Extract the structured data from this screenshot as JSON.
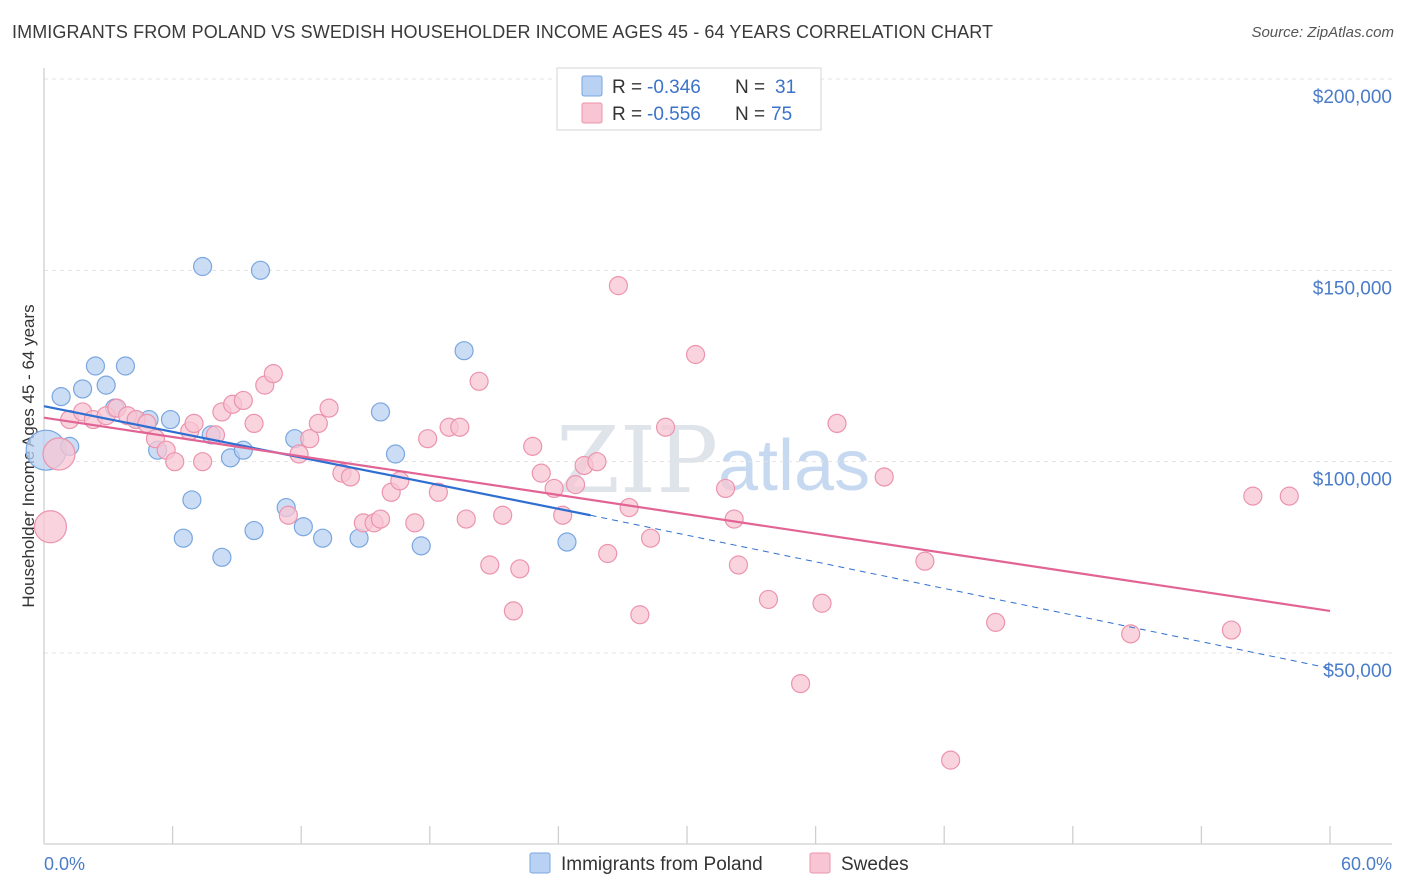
{
  "title": "IMMIGRANTS FROM POLAND VS SWEDISH HOUSEHOLDER INCOME AGES 45 - 64 YEARS CORRELATION CHART",
  "source": "Source: ZipAtlas.com",
  "watermark": {
    "zip": "ZIP",
    "atlas": "atlas"
  },
  "colors": {
    "blue_fill": "#b9d1f2",
    "blue_stroke": "#7aa6e0",
    "blue_line": "#2f6fd1",
    "pink_fill": "#f7c5d3",
    "pink_stroke": "#ec93ad",
    "pink_line": "#e26494",
    "tick_text": "#4a7cc9"
  },
  "legend": {
    "rows": [
      {
        "r_label": "R = ",
        "r_value": "-0.346",
        "n_label": "N = ",
        "n_value": "31"
      },
      {
        "r_label": "R = ",
        "r_value": "-0.556",
        "n_label": "N = ",
        "n_value": "75"
      }
    ]
  },
  "chart_data": {
    "type": "scatter",
    "title": "IMMIGRANTS FROM POLAND VS SWEDISH HOUSEHOLDER INCOME AGES 45 - 64 YEARS CORRELATION CHART",
    "xlabel": "",
    "ylabel": "Householder Income Ages 45 - 64 years",
    "xlim": [
      0,
      60
    ],
    "ylim": [
      5000,
      210000
    ],
    "x_tick_labels": {
      "left": "0.0%",
      "right": "60.0%"
    },
    "y_ticks": [
      {
        "value": 50000,
        "label": "$50,000"
      },
      {
        "value": 100000,
        "label": "$100,000"
      },
      {
        "value": 150000,
        "label": "$150,000"
      },
      {
        "value": 200000,
        "label": "$200,000"
      }
    ],
    "grid": true,
    "series": [
      {
        "name": "Immigrants from Poland",
        "color": "blue",
        "R": -0.346,
        "N": 31,
        "trend": {
          "x0": 0,
          "y0": 114500,
          "x1": 25.5,
          "y1": 86000,
          "dash_to_x": 60,
          "dash_to_y": 46000
        },
        "points": [
          [
            0.1,
            103000,
            20
          ],
          [
            0.8,
            117000,
            9
          ],
          [
            1.2,
            104000,
            9
          ],
          [
            1.8,
            119000,
            9
          ],
          [
            2.4,
            125000,
            9
          ],
          [
            2.9,
            120000,
            9
          ],
          [
            3.3,
            114000,
            9
          ],
          [
            3.8,
            125000,
            9
          ],
          [
            4.3,
            111000,
            9
          ],
          [
            4.9,
            111000,
            9
          ],
          [
            5.3,
            103000,
            9
          ],
          [
            5.9,
            111000,
            9
          ],
          [
            6.5,
            80000,
            9
          ],
          [
            6.9,
            90000,
            9
          ],
          [
            7.4,
            151000,
            9
          ],
          [
            7.8,
            107000,
            9
          ],
          [
            8.3,
            75000,
            9
          ],
          [
            8.7,
            101000,
            9
          ],
          [
            9.3,
            103000,
            9
          ],
          [
            9.8,
            82000,
            9
          ],
          [
            10.1,
            150000,
            9
          ],
          [
            11.3,
            88000,
            9
          ],
          [
            11.7,
            106000,
            9
          ],
          [
            12.1,
            83000,
            9
          ],
          [
            13.0,
            80000,
            9
          ],
          [
            14.7,
            80000,
            9
          ],
          [
            15.7,
            113000,
            9
          ],
          [
            16.4,
            102000,
            9
          ],
          [
            17.6,
            78000,
            9
          ],
          [
            19.6,
            129000,
            9
          ],
          [
            24.4,
            79000,
            9
          ]
        ]
      },
      {
        "name": "Swedes",
        "color": "pink",
        "R": -0.556,
        "N": 75,
        "trend": {
          "x0": 0,
          "y0": 111500,
          "x1": 60,
          "y1": 61000
        },
        "points": [
          [
            0.3,
            83000,
            16
          ],
          [
            0.7,
            102000,
            16
          ],
          [
            1.2,
            111000,
            9
          ],
          [
            1.8,
            113000,
            9
          ],
          [
            2.3,
            111000,
            9
          ],
          [
            2.9,
            112000,
            9
          ],
          [
            3.4,
            114000,
            9
          ],
          [
            3.9,
            112000,
            9
          ],
          [
            4.3,
            111000,
            9
          ],
          [
            4.8,
            110000,
            9
          ],
          [
            5.2,
            106000,
            9
          ],
          [
            5.7,
            103000,
            9
          ],
          [
            6.1,
            100000,
            9
          ],
          [
            6.8,
            108000,
            9
          ],
          [
            7.0,
            110000,
            9
          ],
          [
            7.4,
            100000,
            9
          ],
          [
            8.0,
            107000,
            9
          ],
          [
            8.3,
            113000,
            9
          ],
          [
            8.8,
            115000,
            9
          ],
          [
            9.3,
            116000,
            9
          ],
          [
            9.8,
            110000,
            9
          ],
          [
            10.3,
            120000,
            9
          ],
          [
            10.7,
            123000,
            9
          ],
          [
            11.4,
            86000,
            9
          ],
          [
            11.9,
            102000,
            9
          ],
          [
            12.4,
            106000,
            9
          ],
          [
            12.8,
            110000,
            9
          ],
          [
            13.3,
            114000,
            9
          ],
          [
            13.9,
            97000,
            9
          ],
          [
            14.3,
            96000,
            9
          ],
          [
            14.9,
            84000,
            9
          ],
          [
            15.4,
            84000,
            9
          ],
          [
            15.7,
            85000,
            9
          ],
          [
            16.2,
            92000,
            9
          ],
          [
            16.6,
            95000,
            9
          ],
          [
            17.3,
            84000,
            9
          ],
          [
            17.9,
            106000,
            9
          ],
          [
            18.4,
            92000,
            9
          ],
          [
            18.9,
            109000,
            9
          ],
          [
            19.4,
            109000,
            9
          ],
          [
            19.7,
            85000,
            9
          ],
          [
            20.3,
            121000,
            9
          ],
          [
            20.8,
            73000,
            9
          ],
          [
            21.4,
            86000,
            9
          ],
          [
            21.9,
            61000,
            9
          ],
          [
            22.2,
            72000,
            9
          ],
          [
            22.8,
            104000,
            9
          ],
          [
            23.2,
            97000,
            9
          ],
          [
            23.8,
            93000,
            9
          ],
          [
            24.2,
            86000,
            9
          ],
          [
            24.8,
            94000,
            9
          ],
          [
            25.2,
            99000,
            9
          ],
          [
            25.8,
            100000,
            9
          ],
          [
            26.3,
            76000,
            9
          ],
          [
            26.8,
            146000,
            9
          ],
          [
            27.3,
            88000,
            9
          ],
          [
            27.8,
            60000,
            9
          ],
          [
            28.3,
            80000,
            9
          ],
          [
            29.0,
            109000,
            9
          ],
          [
            30.4,
            128000,
            9
          ],
          [
            31.8,
            93000,
            9
          ],
          [
            32.2,
            85000,
            9
          ],
          [
            32.4,
            73000,
            9
          ],
          [
            33.8,
            64000,
            9
          ],
          [
            35.3,
            42000,
            9
          ],
          [
            36.3,
            63000,
            9
          ],
          [
            37.0,
            110000,
            9
          ],
          [
            39.2,
            96000,
            9
          ],
          [
            41.1,
            74000,
            9
          ],
          [
            42.3,
            22000,
            9
          ],
          [
            44.4,
            58000,
            9
          ],
          [
            50.7,
            55000,
            9
          ],
          [
            55.4,
            56000,
            9
          ],
          [
            56.4,
            91000,
            9
          ],
          [
            58.1,
            91000,
            9
          ]
        ]
      }
    ]
  }
}
